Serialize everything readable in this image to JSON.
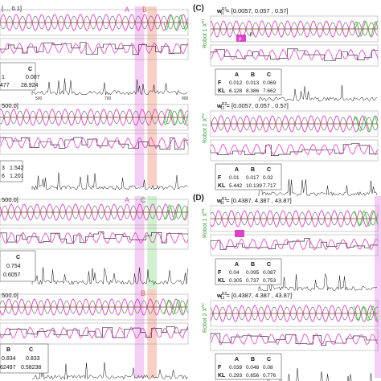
{
  "colors": {
    "pink": "#e040c8",
    "green": "#33cc33",
    "grey": "#888888",
    "black": "#111111",
    "brown": "#7a3a12",
    "band_a": "#f3c6f3",
    "band_b": "#f8c8bc",
    "band_c": "#c9efc9",
    "panel_label": "#222222"
  },
  "left_column": {
    "top_header": "[..., 0.1]",
    "band_labels_top": [
      "A",
      "B"
    ],
    "axis_ticks": [
      "500",
      "700",
      "900"
    ],
    "robot1_table": {
      "header_c": "C",
      "row1": [
        "1",
        "0.007"
      ],
      "row2": [
        "477",
        "28.924"
      ]
    },
    "header_2": "500.0]",
    "robot2_table": {
      "row1": [
        "3",
        "1.542"
      ],
      "row2": [
        "6",
        "1.201"
      ]
    },
    "header_3": "500.0]",
    "band_labels_mid": [
      "A",
      "C"
    ],
    "robot3_table": {
      "header_c": "C",
      "row1": [
        "0.754"
      ],
      "row2": [
        "0.6057"
      ]
    },
    "header_4": "500.0]",
    "band_labels_bottom": [
      "B"
    ],
    "robot4_table": {
      "header_b": "B",
      "header_c": "C",
      "row1": [
        "0.834",
        "0.833"
      ],
      "row2": [
        "62497",
        "0.58238"
      ]
    }
  },
  "panel_c": {
    "label": "(C)",
    "robot1": {
      "side_label": "Robot 1 X",
      "side_sup": "R1",
      "header": "w",
      "header_sup": "R1",
      "header_sub": "11",
      "header_value": "= [0.0057, 0.057 , 0.57]",
      "callout_a": "p",
      "callout_b": "p",
      "columns": [
        "A",
        "B",
        "C"
      ],
      "rows": [
        {
          "label": "F",
          "values": [
            "0.012",
            "0.013",
            "0.069"
          ]
        },
        {
          "label": "KL",
          "values": [
            "6.128",
            "8.386",
            "7.662"
          ]
        }
      ],
      "row_label_f": "F",
      "trace_label": "KL"
    },
    "robot2": {
      "side_label": "Robot 2 X",
      "side_sup": "R2",
      "header": "w",
      "header_sup": "R2",
      "header_sub": "11",
      "header_value": "= [0.0057, 0.057 , 0.57]",
      "columns": [
        "A",
        "B",
        "C"
      ],
      "rows": [
        {
          "label": "F",
          "values": [
            "0.01",
            "0.017",
            "0.02"
          ]
        },
        {
          "label": "KL",
          "values": [
            "5.442",
            "10.139",
            "7.717"
          ]
        }
      ]
    }
  },
  "panel_d": {
    "label": "(D)",
    "robot1": {
      "side_label": "Robot 1 X",
      "side_sup": "R1",
      "header": "w",
      "header_sup": "R1",
      "header_sub": "11",
      "header_value": "= [0.4387, 4.387 , 43.87]",
      "columns": [
        "A",
        "B",
        "C"
      ],
      "rows": [
        {
          "label": "F",
          "values": [
            "0.04",
            "0.095",
            "0.087"
          ]
        },
        {
          "label": "KL",
          "values": [
            "0.305",
            "0.737",
            "0.753"
          ]
        }
      ]
    },
    "robot2": {
      "side_label": "Robot 2 X",
      "side_sup": "R2",
      "header": "w",
      "header_sup": "R2",
      "header_sub": "11",
      "header_value": "= [0.4387, 4.387 , 43.87]",
      "columns": [
        "A",
        "B",
        "C"
      ],
      "rows": [
        {
          "label": "F",
          "values": [
            "0.039",
            "0.048",
            "0.08"
          ]
        },
        {
          "label": "KL",
          "values": [
            "0.293",
            "0.656",
            "0.776"
          ]
        }
      ]
    }
  },
  "chart_data": {
    "type": "line",
    "title": "",
    "xlabel": "",
    "ylabel": "",
    "x_ticks": [
      500,
      700,
      900
    ],
    "xlim": [
      300,
      900
    ],
    "highlight_bands": [
      {
        "label": "A",
        "x_range": [
          730,
          760
        ]
      },
      {
        "label": "B",
        "x_range": [
          770,
          800
        ]
      },
      {
        "label": "C",
        "x_range": [
          770,
          800
        ]
      }
    ],
    "series": [
      {
        "values": "pink oscillating sensor trace, period about 15 steps"
      },
      {
        "values": "green oscillating sensor trace, period about 15 steps"
      },
      {
        "values": "grey reference oscillation"
      },
      {
        "values": "black spiky divergence trace below each robot"
      }
    ]
  }
}
